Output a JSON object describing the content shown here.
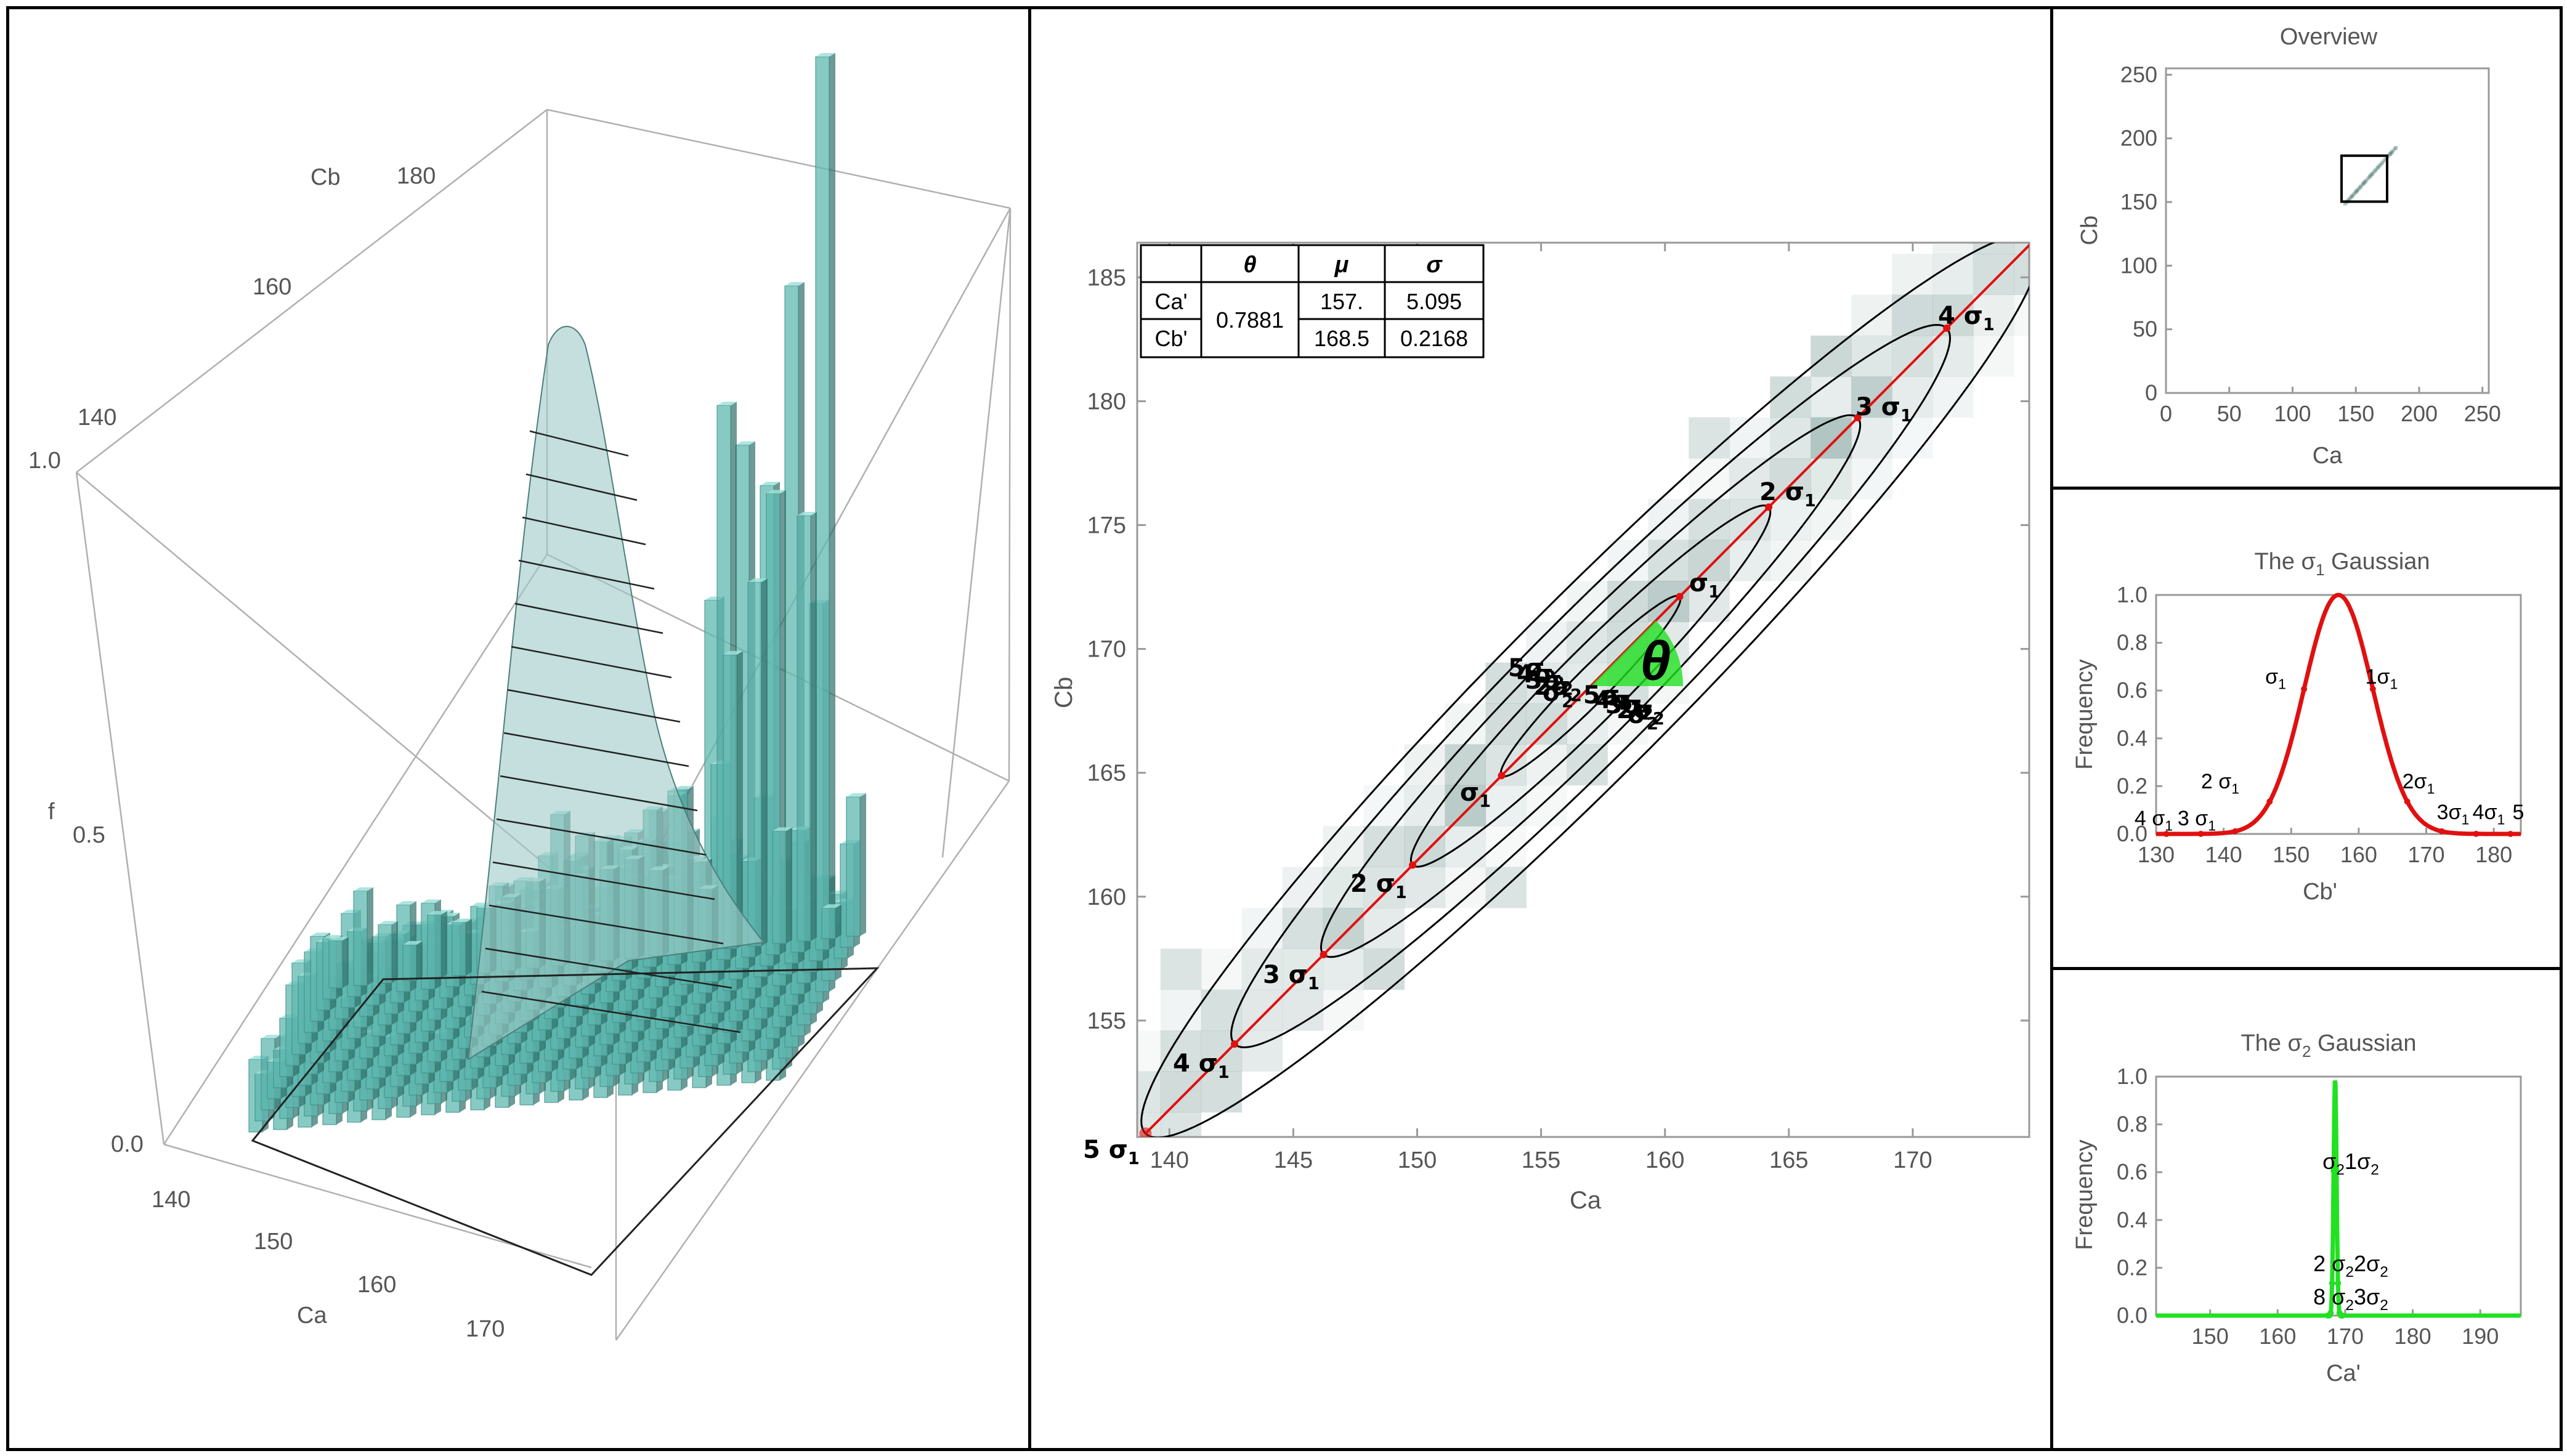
{
  "figure": {
    "panel_3d": {
      "type": "3d-bar-histogram",
      "axis_x_label": "Ca",
      "axis_x_ticks": [
        "140",
        "150",
        "160",
        "170"
      ],
      "axis_y_label": "Cb",
      "axis_y_ticks": [
        "140",
        "160",
        "180"
      ],
      "axis_z_label": "f",
      "axis_z_ticks": [
        "0.0",
        "0.5",
        "1.0"
      ],
      "bar_color": "#5fb8b0",
      "surface_color": "#9cc9c6"
    },
    "main_chart": {
      "xlabel": "Ca",
      "ylabel": "Cb",
      "x_ticks": [
        "140",
        "145",
        "150",
        "155",
        "160",
        "165",
        "170"
      ],
      "y_ticks": [
        "155",
        "160",
        "165",
        "170",
        "175",
        "180",
        "185"
      ],
      "theta_symbol": "θ",
      "ellipse_labels": [
        "σ1",
        "2 σ1",
        "3 σ1",
        "4 σ1"
      ],
      "lower_labels": [
        "σ1",
        "2 σ1",
        "3 σ1",
        "4 σ1",
        "5 σ1"
      ],
      "center_labels": [
        "5σ2",
        "4σ2",
        "3σ2",
        "2σ2",
        "σ2"
      ],
      "table": {
        "headers": [
          "θ",
          "μ",
          "σ"
        ],
        "rows": [
          {
            "name": "Ca'",
            "mu": "157.",
            "sigma": "5.095"
          },
          {
            "name": "Cb'",
            "mu": "168.5",
            "sigma": "0.2168"
          }
        ],
        "theta": "0.7881"
      }
    },
    "overview": {
      "title": "Overview",
      "xlabel": "Ca",
      "ylabel": "Cb",
      "x_ticks": [
        "0",
        "50",
        "100",
        "150",
        "200",
        "250"
      ],
      "y_ticks": [
        "0",
        "50",
        "100",
        "150",
        "200",
        "250"
      ]
    },
    "gauss1": {
      "title_prefix": "The σ",
      "title_sub": "1",
      "title_suffix": " Gaussian",
      "xlabel": "Cb'",
      "ylabel": "Frequency",
      "x_ticks": [
        "130",
        "140",
        "150",
        "160",
        "170",
        "180"
      ],
      "y_ticks": [
        "0.0",
        "0.2",
        "0.4",
        "0.6",
        "0.8",
        "1.0"
      ],
      "color": "#e01010",
      "labels": [
        "σ1",
        "1σ1",
        "2 σ1",
        "2σ1",
        "4 σ1",
        "3 σ1",
        "3σ1",
        "4σ1",
        "5"
      ]
    },
    "gauss2": {
      "title_prefix": "The σ",
      "title_sub": "2",
      "title_suffix": " Gaussian",
      "xlabel": "Ca'",
      "ylabel": "Frequency",
      "x_ticks": [
        "150",
        "160",
        "170",
        "180",
        "190"
      ],
      "y_ticks": [
        "0.0",
        "0.2",
        "0.4",
        "0.6",
        "0.8",
        "1.0"
      ],
      "color": "#22e022",
      "labels": [
        "σ21σ2",
        "2 σ22σ2",
        "8 σ23σ2"
      ]
    }
  },
  "chart_data": [
    {
      "type": "heatmap",
      "xlabel": "Ca",
      "ylabel": "Cb",
      "xlim": [
        138.7,
        174.7
      ],
      "ylim": [
        150.3,
        186.4
      ],
      "mean": {
        "x": 157.0,
        "y": 168.5
      },
      "theta": 0.7881,
      "sigma1": 5.095,
      "sigma2": 0.2168,
      "sigma_levels": [
        1,
        2,
        3,
        4,
        5
      ]
    },
    {
      "type": "heatmap",
      "title": "Overview",
      "xlabel": "Ca",
      "ylabel": "Cb",
      "xlim": [
        0,
        255
      ],
      "ylim": [
        0,
        255
      ],
      "zoom_box": {
        "x": [
          138.7,
          174.7
        ],
        "y": [
          150.3,
          186.4
        ]
      }
    },
    {
      "type": "line",
      "title": "The σ1 Gaussian",
      "xlabel": "Cb'",
      "ylabel": "Frequency",
      "xlim": [
        130,
        184
      ],
      "ylim": [
        0,
        1.0
      ],
      "mean": 157.0,
      "sigma": 5.095
    },
    {
      "type": "line",
      "title": "The σ2 Gaussian",
      "xlabel": "Ca'",
      "ylabel": "Frequency",
      "xlim": [
        142,
        196
      ],
      "ylim": [
        0,
        1.0
      ],
      "mean": 168.5,
      "sigma": 0.2168
    }
  ]
}
